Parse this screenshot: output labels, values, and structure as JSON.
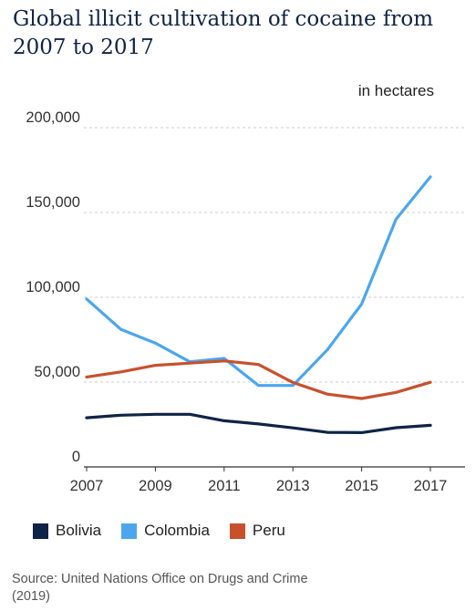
{
  "chart_data": {
    "type": "line",
    "title": "Global illicit cultivation of cocaine from 2007 to 2017",
    "unit_label": "in hectares",
    "x": [
      2007,
      2008,
      2009,
      2010,
      2011,
      2012,
      2013,
      2014,
      2015,
      2016,
      2017
    ],
    "x_tick_labels": [
      "2007",
      "2009",
      "2011",
      "2013",
      "2015",
      "2017"
    ],
    "y_tick_labels": [
      "0",
      "50,000",
      "100,000",
      "150,000",
      "200,000"
    ],
    "y_ticks": [
      0,
      50000,
      100000,
      150000,
      200000
    ],
    "ylim": [
      0,
      200000
    ],
    "xlim": [
      2007,
      2017
    ],
    "grid": true,
    "legend_position": "bottom-left",
    "series": [
      {
        "name": "Bolivia",
        "color": "#0f2346",
        "values": [
          29000,
          30500,
          31000,
          31000,
          27200,
          25300,
          23000,
          20400,
          20200,
          23100,
          24500
        ]
      },
      {
        "name": "Colombia",
        "color": "#4ba6ee",
        "values": [
          99000,
          81000,
          73000,
          62000,
          64000,
          48000,
          48000,
          69000,
          96000,
          146000,
          171000
        ]
      },
      {
        "name": "Peru",
        "color": "#c7512d",
        "values": [
          53000,
          56000,
          59900,
          61200,
          62500,
          60400,
          49800,
          42900,
          40300,
          43900,
          49900
        ]
      }
    ]
  },
  "source": "Source: United Nations Office on Drugs and Crime (2019)"
}
